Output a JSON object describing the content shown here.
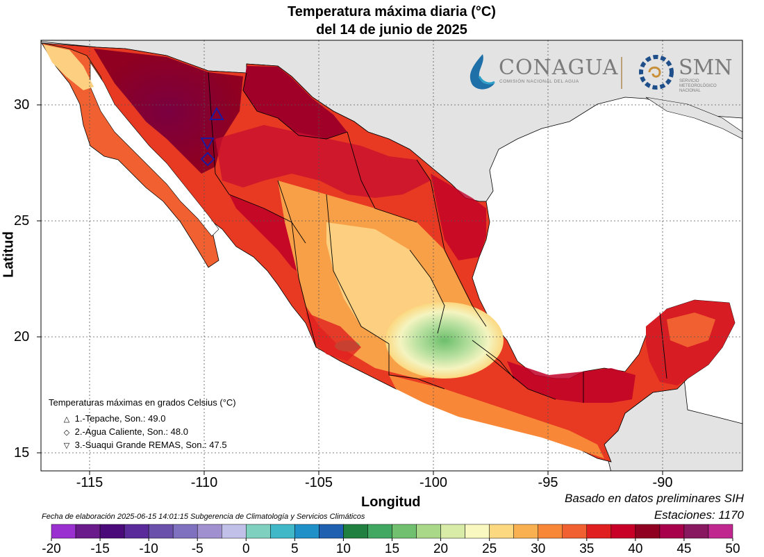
{
  "title_line1": "Temperatura máxima diaria (°C)",
  "title_line2": "del 14 de junio de 2025",
  "axes": {
    "xlabel": "Longitud",
    "ylabel": "Latitud",
    "xticks": [
      "-115",
      "-110",
      "-105",
      "-100",
      "-95",
      "-90"
    ],
    "yticks": [
      "30",
      "25",
      "20",
      "15"
    ],
    "xlim": [
      -117.2,
      -87.2
    ],
    "ylim": [
      14.0,
      32.8
    ],
    "grid": true
  },
  "logos": {
    "conagua": "CONAGUA",
    "conagua_sub": "COMISIÓN NACIONAL DEL AGUA",
    "smn": "SMN",
    "smn_sub": "SERVICIO METEOROLÓGICO NACIONAL"
  },
  "legend": {
    "header": "Temperaturas máximas en grados Celsius (°C)",
    "items": [
      {
        "symbol": "△",
        "text": "1.-Tepache, Son.: 49.0",
        "lon": -109.5,
        "lat": 29.6
      },
      {
        "symbol": "◇",
        "text": "2.-Agua Caliente, Son.: 48.0",
        "lon": -109.9,
        "lat": 27.7
      },
      {
        "symbol": "▽",
        "text": "3.-Suaqui Grande REMAS, Son.: 47.5",
        "lon": -109.9,
        "lat": 28.4
      }
    ]
  },
  "footer": {
    "basado": "Basado en datos preliminares SIH",
    "estaciones": "Estaciones:  1170",
    "fecha": "Fecha de elaboración 2025-06-15 14:01:15 Subgerencia de Climatología y Servicios Climáticos"
  },
  "colorbar": {
    "labels": [
      "-20",
      "-15",
      "-10",
      "-5",
      "0",
      "5",
      "10",
      "15",
      "20",
      "25",
      "30",
      "35",
      "40",
      "45",
      "50"
    ],
    "colors": [
      "#9b30d0",
      "#6a1a8a",
      "#4a0a7a",
      "#5a2a9a",
      "#6a50aa",
      "#8070c0",
      "#a090d0",
      "#c0c0e8",
      "#80d0c0",
      "#40b8c8",
      "#2090c8",
      "#2060b0",
      "#208040",
      "#40a860",
      "#70c070",
      "#a8d888",
      "#d8eca8",
      "#f8f8c0",
      "#fcd880",
      "#f8b050",
      "#f88838",
      "#f06030",
      "#e02020",
      "#c80028",
      "#900020",
      "#a8004a",
      "#881860",
      "#c02890"
    ],
    "mid_colors": [
      "#9b30d0"
    ]
  }
}
